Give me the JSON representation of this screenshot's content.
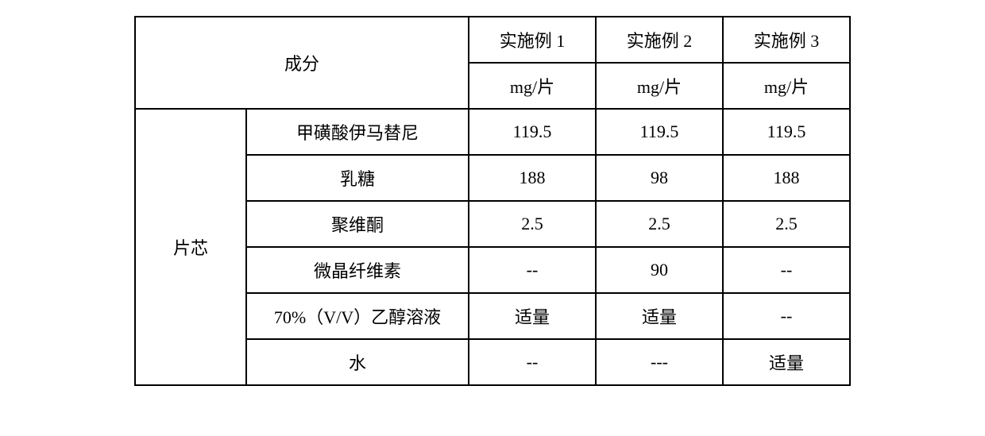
{
  "table": {
    "border_color": "#000000",
    "background_color": "#ffffff",
    "text_color": "#000000",
    "font_size": 22,
    "font_family": "SimSun",
    "header": {
      "ingredient_label": "成分",
      "col1_top": "实施例 1",
      "col2_top": "实施例 2",
      "col3_top": "实施例 3",
      "col1_unit": "mg/片",
      "col2_unit": "mg/片",
      "col3_unit": "mg/片"
    },
    "group_label": "片芯",
    "rows": [
      {
        "name": "甲磺酸伊马替尼",
        "v1": "119.5",
        "v2": "119.5",
        "v3": "119.5"
      },
      {
        "name": "乳糖",
        "v1": "188",
        "v2": "98",
        "v3": "188"
      },
      {
        "name": "聚维酮",
        "v1": "2.5",
        "v2": "2.5",
        "v3": "2.5"
      },
      {
        "name": "微晶纤维素",
        "v1": "--",
        "v2": "90",
        "v3": "--"
      },
      {
        "name": "70%（V/V）乙醇溶液",
        "v1": "适量",
        "v2": "适量",
        "v3": "--"
      },
      {
        "name": "水",
        "v1": "--",
        "v2": "---",
        "v3": "适量"
      }
    ],
    "columns_width": {
      "group": 140,
      "ingredient": 280,
      "value": 160
    }
  }
}
